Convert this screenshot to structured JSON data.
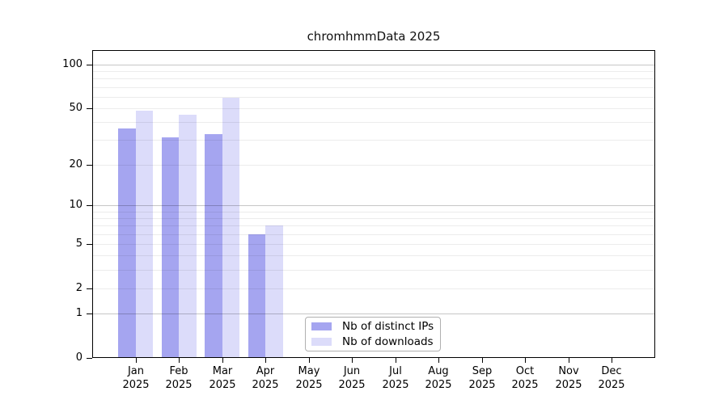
{
  "chart_data": {
    "type": "bar",
    "title": "chromhmmData 2025",
    "categories": [
      "Jan",
      "Feb",
      "Mar",
      "Apr",
      "May",
      "Jun",
      "Jul",
      "Aug",
      "Sep",
      "Oct",
      "Nov",
      "Dec"
    ],
    "year": "2025",
    "series": [
      {
        "name": "Nb of distinct IPs",
        "color": "#a5a5f0",
        "values": [
          36,
          31,
          33,
          6,
          0,
          0,
          0,
          0,
          0,
          0,
          0,
          0
        ]
      },
      {
        "name": "Nb of downloads",
        "color": "#dcdcfa",
        "values": [
          48,
          45,
          59,
          7,
          0,
          0,
          0,
          0,
          0,
          0,
          0,
          0
        ]
      }
    ],
    "y_scale": "log1p",
    "y_ticks": [
      0,
      1,
      2,
      5,
      10,
      20,
      50,
      100
    ],
    "y_minor_gridlines": [
      2,
      3,
      4,
      5,
      6,
      7,
      8,
      9,
      20,
      30,
      40,
      50,
      60,
      70,
      80,
      90
    ],
    "y_major_gridlines": [
      1,
      10,
      100
    ],
    "ylim": [
      0,
      126
    ],
    "grid_on": true,
    "legend": {
      "position": "inside-bottom-center",
      "items": [
        "Nb of distinct IPs",
        "Nb of downloads"
      ]
    },
    "colors": {
      "axis": "#000000",
      "grid_major": "#c8c8c8",
      "grid_minor": "#ececec",
      "background": "#ffffff"
    }
  }
}
